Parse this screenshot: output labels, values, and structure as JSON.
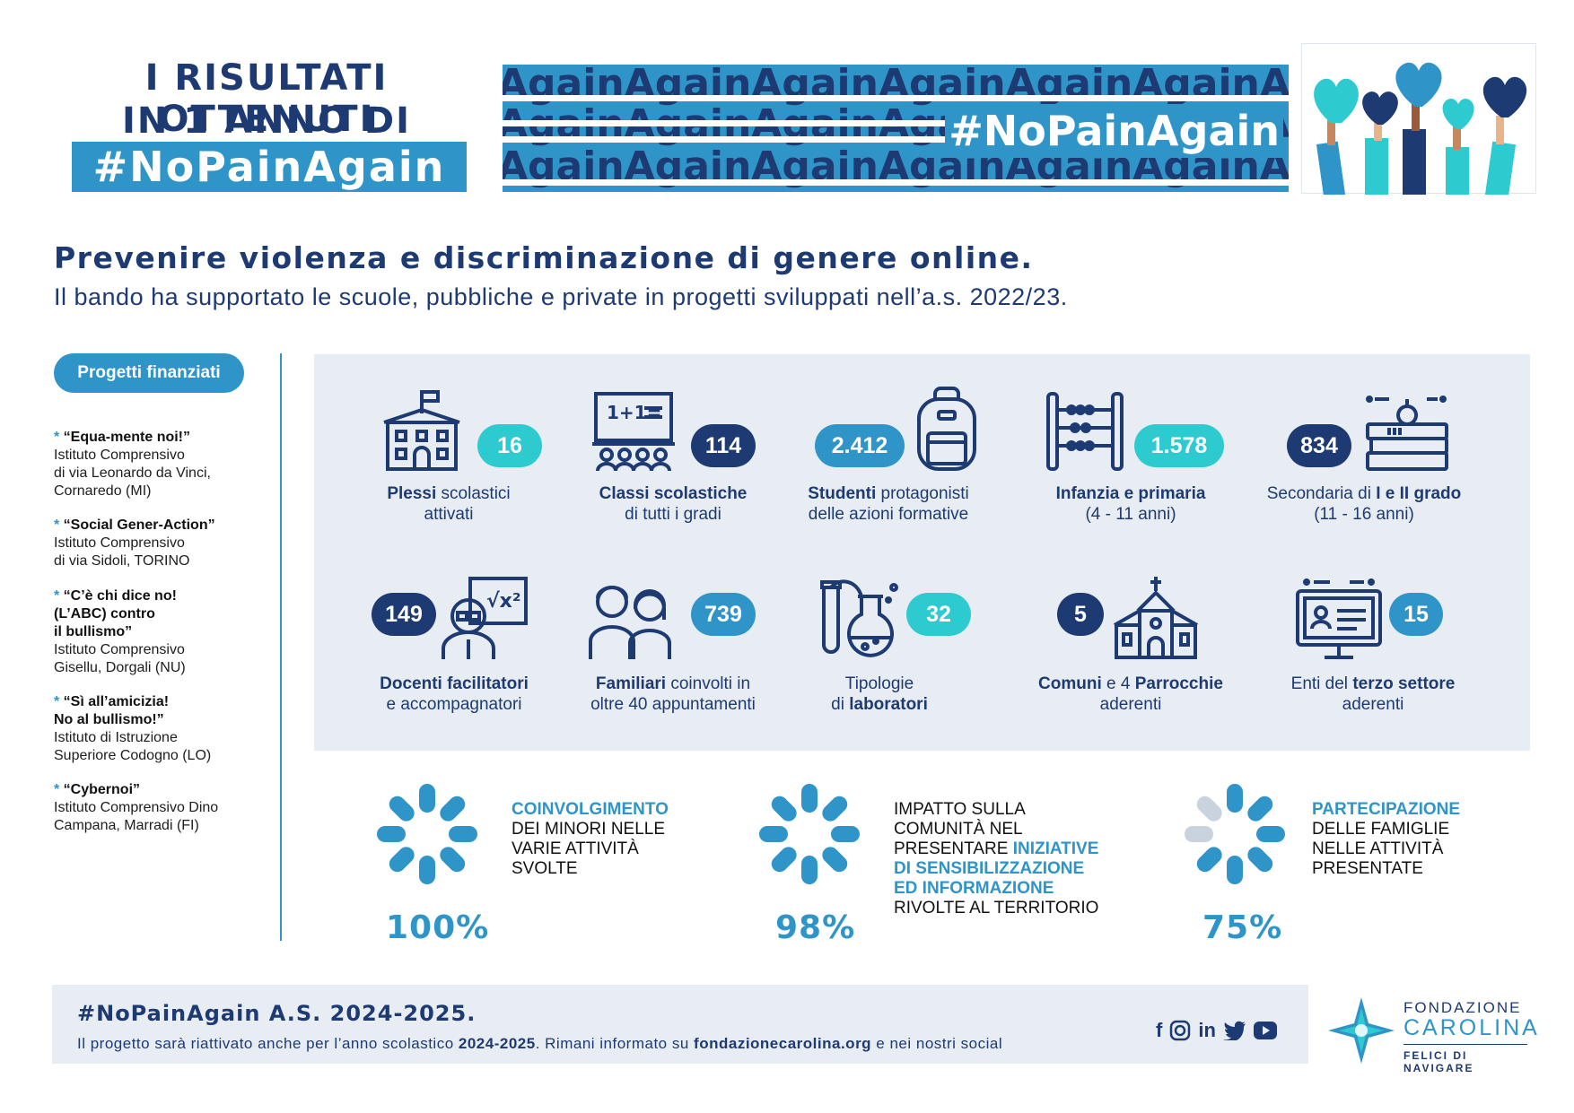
{
  "header": {
    "title_line1": "I RISULTATI OTTENUTI",
    "title_line2": "IN 1 ANNO DI",
    "title_tag": "#NoPainAgain",
    "banner_repeat": "AgainAgainAgainAgainAgainAgainAgainAgain",
    "banner_hashtag": "#NoPainAgain"
  },
  "intro": {
    "heading": "Prevenire violenza e discriminazione di genere online.",
    "subheading": "Il bando ha supportato le scuole, pubbliche e private in progetti sviluppati nell’a.s. 2022/23."
  },
  "sidebar": {
    "pill_label": "Progetti finanziati",
    "projects": [
      {
        "title": "“Equa-mente noi!”",
        "details": [
          "Istituto Comprensivo",
          "di via Leonardo da Vinci,",
          "Cornaredo (MI)"
        ]
      },
      {
        "title": "“Social Gener-Action”",
        "details": [
          "Istituto Comprensivo",
          "di via Sidoli, TORINO"
        ]
      },
      {
        "title": "“C’è chi dice no!",
        "title2": "(L’ABC) contro",
        "title3": "il bullismo”",
        "details": [
          "Istituto Comprensivo",
          "Gisellu, Dorgali (NU)"
        ]
      },
      {
        "title": "“Sì all’amicizia!",
        "title2": "No al bullismo!”",
        "details": [
          "Istituto di Istruzione",
          "Superiore Codogno (LO)"
        ]
      },
      {
        "title": "“Cybernoi”",
        "details": [
          "Istituto Comprensivo Dino",
          "Campana, Marradi (FI)"
        ]
      }
    ]
  },
  "stats": [
    {
      "value": "16",
      "bold": "Plessi",
      "rest1": " scolastici",
      "rest2": "attivati",
      "icon": "school-building-icon",
      "color": "#2dcad0"
    },
    {
      "value": "114",
      "bold": "Classi scolastiche",
      "rest1": "",
      "rest2": "di tutti i gradi",
      "icon": "classroom-icon",
      "color": "#1d3a73"
    },
    {
      "value": "2.412",
      "bold": "Studenti",
      "rest1": " protagonisti",
      "rest2": "delle azioni formative",
      "icon": "backpack-icon",
      "color": "#2f95c8"
    },
    {
      "value": "1.578",
      "bold": "Infanzia e primaria",
      "rest1": "",
      "rest2": "(4 - 11 anni)",
      "icon": "abacus-icon",
      "color": "#2dcad0"
    },
    {
      "pre": "Secondaria di ",
      "value": "834",
      "bold": "I e II grado",
      "rest1": "",
      "rest2": "(11 - 16 anni)",
      "icon": "books-icon",
      "color": "#1d3a73"
    },
    {
      "value": "149",
      "bold": "Docenti facilitatori",
      "rest1": "",
      "rest2": "e accompagnatori",
      "icon": "teacher-icon",
      "color": "#1d3a73"
    },
    {
      "value": "739",
      "bold": "Familiari",
      "rest1": " coinvolti in",
      "rest2": "oltre 40 appuntamenti",
      "icon": "family-icon",
      "color": "#2f95c8"
    },
    {
      "value": "32",
      "pre": "Tipologie",
      "pre2": "di ",
      "bold": "laboratori",
      "icon": "lab-flask-icon",
      "color": "#2dcad0"
    },
    {
      "value": "5",
      "bold": "Comuni",
      "mid": " e 4 ",
      "bold2": "Parrocchie",
      "rest2": "aderenti",
      "icon": "church-icon",
      "color": "#1d3a73"
    },
    {
      "value": "15",
      "pre": "Enti del ",
      "bold": "terzo settore",
      "rest2": "aderenti",
      "icon": "computer-icon",
      "color": "#2f95c8"
    }
  ],
  "percentages": [
    {
      "value": "100%",
      "fraction": 1.0,
      "highlight": "COINVOLGIMENTO",
      "lines": [
        "DEI MINORI NELLE",
        "VARIE ATTIVITÀ",
        "SVOLTE"
      ]
    },
    {
      "value": "98%",
      "fraction": 0.98,
      "lead": [
        "IMPATTO SULLA",
        "COMUNITÀ NEL"
      ],
      "mixed": "PRESENTARE ",
      "highlight": "INIZIATIVE",
      "hl_lines": [
        "DI SENSIBILIZZAZIONE",
        "ED INFORMAZIONE"
      ],
      "tail": "RIVOLTE AL TERRITORIO"
    },
    {
      "value": "75%",
      "fraction": 0.75,
      "highlight": "PARTECIPAZIONE",
      "lines": [
        "DELLE FAMIGLIE",
        "NELLE ATTIVITÀ",
        "PRESENTATE"
      ]
    }
  ],
  "footer": {
    "title": "#NoPainAgain A.S. 2024-2025.",
    "text_a": "Il progetto sarà riattivato anche per l’anno scolastico ",
    "text_b": "2024-2025",
    "text_c": ". Rimani informato su ",
    "text_d": "fondazionecarolina.org",
    "text_e": " e nei nostri social",
    "social_icons": [
      "facebook-icon",
      "instagram-icon",
      "linkedin-icon",
      "twitter-icon",
      "youtube-icon"
    ]
  },
  "logo": {
    "name1": "FONDAZIONE",
    "name2": "CAROLINA",
    "tagline": "FELICI DI NAVIGARE"
  },
  "colors": {
    "navy": "#1d3a73",
    "blue": "#2f95c8",
    "teal": "#2dcad0",
    "panel": "#e8edf3"
  }
}
